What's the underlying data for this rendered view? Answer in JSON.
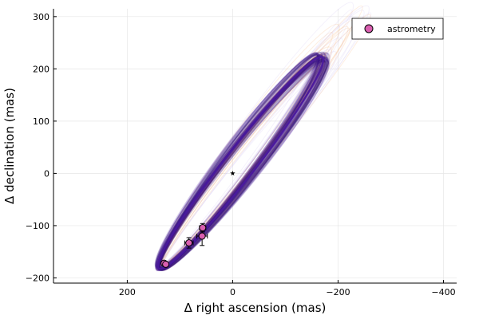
{
  "chart_data": {
    "type": "scatter",
    "xlabel": "Δ right ascension (mas)",
    "ylabel": "Δ declination (mas)",
    "x_reversed": true,
    "xlim": [
      340,
      -425
    ],
    "ylim": [
      -210,
      315
    ],
    "xticks": [
      200,
      0,
      -200,
      -400
    ],
    "xtick_labels": [
      "200",
      "0",
      "−200",
      "−400"
    ],
    "yticks": [
      -200,
      -100,
      0,
      100,
      200,
      300
    ],
    "ytick_labels": [
      "−200",
      "−100",
      "0",
      "100",
      "200",
      "300"
    ],
    "grid": true,
    "legend_position": "top-right",
    "legend": [
      {
        "label": "astrometry",
        "color": "#d95fb0"
      }
    ],
    "series": [
      {
        "name": "astrometry",
        "color": "#d95fb0",
        "points": [
          {
            "x": 130,
            "y": -172,
            "xerr": 5,
            "yerr": 4
          },
          {
            "x": 127,
            "y": -174,
            "xerr": 4,
            "yerr": 4
          },
          {
            "x": 83,
            "y": -133,
            "xerr": 8,
            "yerr": 10
          },
          {
            "x": 58,
            "y": -120,
            "xerr": 10,
            "yerr": 18
          },
          {
            "x": 57,
            "y": -104,
            "xerr": 6,
            "yerr": 8
          }
        ]
      }
    ],
    "star": {
      "x": 0,
      "y": 0
    },
    "orbit_colors": {
      "main": "#4a1a9e",
      "dark": "#2e0f6e",
      "warm": "#f3a05e",
      "pale": "#c9b8f0"
    }
  }
}
